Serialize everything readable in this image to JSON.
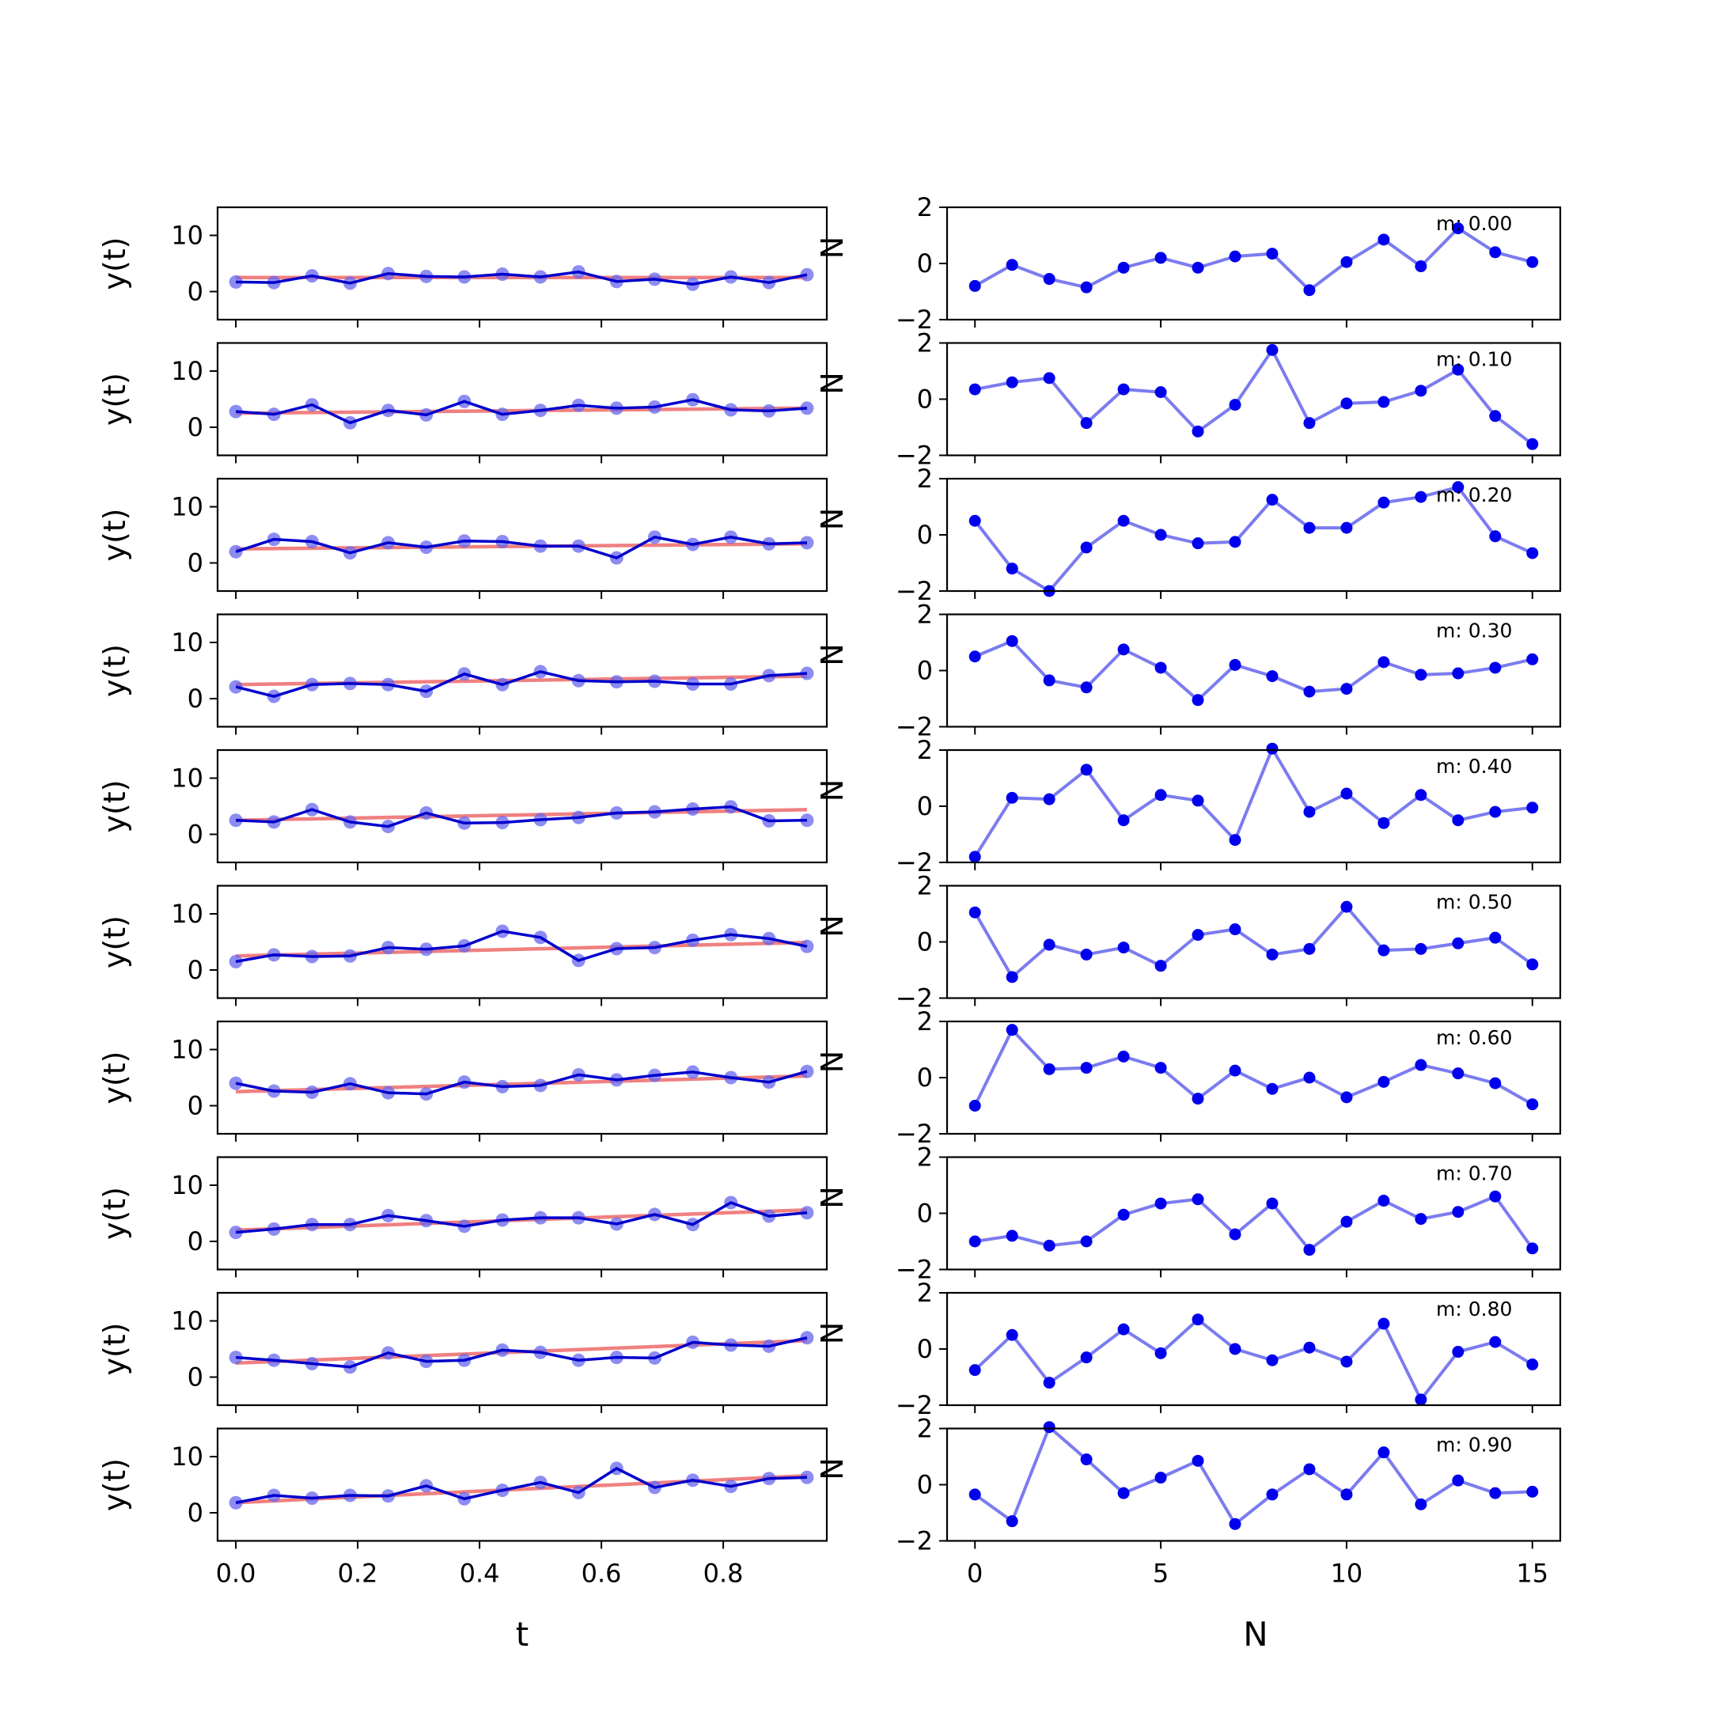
{
  "chart_data": {
    "type": "line",
    "grid": false,
    "rows": 10,
    "left_column": {
      "xlabel": "t",
      "ylabel": "y(t)",
      "xlim": [
        -0.03,
        0.97
      ],
      "ylim": [
        -5,
        15
      ],
      "xticks": [
        0.0,
        0.2,
        0.4,
        0.6,
        0.8
      ],
      "xtick_labels": [
        "0.0",
        "0.2",
        "0.4",
        "0.6",
        "0.8"
      ],
      "yticks": [
        0,
        10
      ],
      "ytick_labels": [
        "0",
        "10"
      ],
      "x": [
        0.0,
        0.0625,
        0.125,
        0.1875,
        0.25,
        0.3125,
        0.375,
        0.4375,
        0.5,
        0.5625,
        0.625,
        0.6875,
        0.75,
        0.8125,
        0.875,
        0.9375
      ],
      "colors": {
        "observed": "#0000cc",
        "observed_points": "#6666ee",
        "fit": "#f08080"
      },
      "panels": [
        {
          "m": 0.0,
          "fit": [
            2.5,
            2.5
          ],
          "y": [
            1.7,
            1.6,
            2.8,
            1.5,
            3.2,
            2.7,
            2.6,
            3.1,
            2.6,
            3.5,
            1.8,
            2.2,
            1.3,
            2.6,
            1.6,
            3.0
          ]
        },
        {
          "m": 0.1,
          "fit": [
            2.5,
            3.4
          ],
          "y": [
            2.8,
            2.3,
            4.0,
            0.8,
            3.0,
            2.2,
            4.6,
            2.3,
            3.0,
            3.9,
            3.4,
            3.6,
            4.9,
            3.1,
            2.9,
            3.4
          ]
        },
        {
          "m": 0.2,
          "fit": [
            2.5,
            3.4
          ],
          "y": [
            2.0,
            4.2,
            3.8,
            1.8,
            3.6,
            2.8,
            3.9,
            3.8,
            3.0,
            3.0,
            0.9,
            4.6,
            3.3,
            4.6,
            3.4,
            3.6
          ]
        },
        {
          "m": 0.3,
          "fit": [
            2.5,
            4.0
          ],
          "y": [
            2.1,
            0.4,
            2.5,
            2.7,
            2.5,
            1.3,
            4.4,
            2.5,
            4.8,
            3.2,
            3.0,
            3.1,
            2.6,
            2.6,
            4.1,
            4.5
          ]
        },
        {
          "m": 0.4,
          "fit": [
            2.5,
            4.4
          ],
          "y": [
            2.5,
            2.2,
            4.4,
            2.2,
            1.4,
            3.8,
            2.0,
            2.1,
            2.6,
            3.0,
            3.8,
            4.0,
            4.5,
            4.9,
            2.4,
            2.5
          ]
        },
        {
          "m": 0.5,
          "fit": [
            2.5,
            4.9
          ],
          "y": [
            1.5,
            2.7,
            2.4,
            2.5,
            4.0,
            3.7,
            4.3,
            6.9,
            5.8,
            1.7,
            3.8,
            4.0,
            5.3,
            6.3,
            5.6,
            4.2
          ]
        },
        {
          "m": 0.6,
          "fit": [
            2.5,
            5.3
          ],
          "y": [
            4.0,
            2.6,
            2.4,
            3.9,
            2.3,
            2.1,
            4.2,
            3.4,
            3.6,
            5.5,
            4.6,
            5.4,
            6.0,
            5.0,
            4.2,
            6.1
          ]
        },
        {
          "m": 0.7,
          "fit": [
            2.0,
            5.6
          ],
          "y": [
            1.6,
            2.2,
            3.0,
            3.0,
            4.6,
            3.7,
            2.7,
            3.8,
            4.2,
            4.2,
            3.1,
            4.8,
            3.0,
            6.9,
            4.5,
            5.1
          ]
        },
        {
          "m": 0.8,
          "fit": [
            2.5,
            6.5
          ],
          "y": [
            3.5,
            3.0,
            2.4,
            1.8,
            4.3,
            2.8,
            3.0,
            4.8,
            4.4,
            3.0,
            3.5,
            3.4,
            6.2,
            5.7,
            5.5,
            7.0
          ]
        },
        {
          "m": 0.9,
          "fit": [
            1.8,
            6.6
          ],
          "y": [
            1.8,
            3.1,
            2.6,
            3.1,
            3.0,
            4.8,
            2.5,
            4.0,
            5.4,
            3.6,
            7.9,
            4.5,
            5.8,
            4.7,
            6.1,
            6.3
          ]
        }
      ]
    },
    "right_column": {
      "xlabel": "N",
      "ylabel": "N",
      "xlim": [
        -0.75,
        15.75
      ],
      "ylim": [
        -2,
        2
      ],
      "xticks": [
        0,
        5,
        10,
        15
      ],
      "xtick_labels": [
        "0",
        "5",
        "10",
        "15"
      ],
      "yticks": [
        -2,
        0,
        2
      ],
      "ytick_labels": [
        "−2",
        "0",
        "2"
      ],
      "x": [
        0,
        1,
        2,
        3,
        4,
        5,
        6,
        7,
        8,
        9,
        10,
        11,
        12,
        13,
        14,
        15
      ],
      "colors": {
        "line": "#7b7bf0",
        "points": "#0000ee"
      },
      "panels": [
        {
          "annotation": "m: 0.00",
          "y": [
            -0.8,
            -0.05,
            -0.55,
            -0.85,
            -0.15,
            0.2,
            -0.15,
            0.25,
            0.35,
            -0.95,
            0.05,
            0.85,
            -0.1,
            1.25,
            0.4,
            0.05
          ]
        },
        {
          "annotation": "m: 0.10",
          "y": [
            0.35,
            0.6,
            0.75,
            -0.85,
            0.35,
            0.25,
            -1.15,
            -0.2,
            1.75,
            -0.85,
            -0.15,
            -0.1,
            0.3,
            1.05,
            -0.6,
            -1.6
          ]
        },
        {
          "annotation": "m: 0.20",
          "y": [
            0.5,
            -1.2,
            -2.0,
            -0.45,
            0.5,
            0.0,
            -0.3,
            -0.25,
            1.25,
            0.25,
            0.25,
            1.15,
            1.35,
            1.7,
            -0.05,
            -0.65
          ]
        },
        {
          "annotation": "m: 0.30",
          "y": [
            0.5,
            1.05,
            -0.35,
            -0.6,
            0.75,
            0.1,
            -1.05,
            0.2,
            -0.2,
            -0.75,
            -0.65,
            0.3,
            -0.15,
            -0.1,
            0.1,
            0.4
          ]
        },
        {
          "annotation": "m: 0.40",
          "y": [
            -1.8,
            0.3,
            0.25,
            1.3,
            -0.5,
            0.4,
            0.2,
            -1.2,
            2.05,
            -0.2,
            0.45,
            -0.6,
            0.4,
            -0.5,
            -0.2,
            -0.05
          ]
        },
        {
          "annotation": "m: 0.50",
          "y": [
            1.05,
            -1.25,
            -0.1,
            -0.45,
            -0.2,
            -0.85,
            0.25,
            0.45,
            -0.45,
            -0.25,
            1.25,
            -0.3,
            -0.25,
            -0.05,
            0.15,
            -0.8
          ]
        },
        {
          "annotation": "m: 0.60",
          "y": [
            -1.0,
            1.7,
            0.3,
            0.35,
            0.75,
            0.35,
            -0.75,
            0.25,
            -0.4,
            0.0,
            -0.7,
            -0.15,
            0.45,
            0.15,
            -0.2,
            -0.95
          ]
        },
        {
          "annotation": "m: 0.70",
          "y": [
            -1.0,
            -0.8,
            -1.15,
            -1.0,
            -0.05,
            0.35,
            0.5,
            -0.75,
            0.35,
            -1.3,
            -0.3,
            0.45,
            -0.2,
            0.05,
            0.6,
            -1.25
          ]
        },
        {
          "annotation": "m: 0.80",
          "y": [
            -0.75,
            0.5,
            -1.2,
            -0.3,
            0.7,
            -0.15,
            1.05,
            0.0,
            -0.4,
            0.05,
            -0.45,
            0.9,
            -1.8,
            -0.1,
            0.25,
            -0.55
          ]
        },
        {
          "annotation": "m: 0.90",
          "y": [
            -0.35,
            -1.3,
            2.05,
            0.9,
            -0.3,
            0.25,
            0.85,
            -1.4,
            -0.35,
            0.55,
            -0.35,
            1.15,
            -0.7,
            0.15,
            -0.3,
            -0.25
          ]
        }
      ]
    }
  }
}
